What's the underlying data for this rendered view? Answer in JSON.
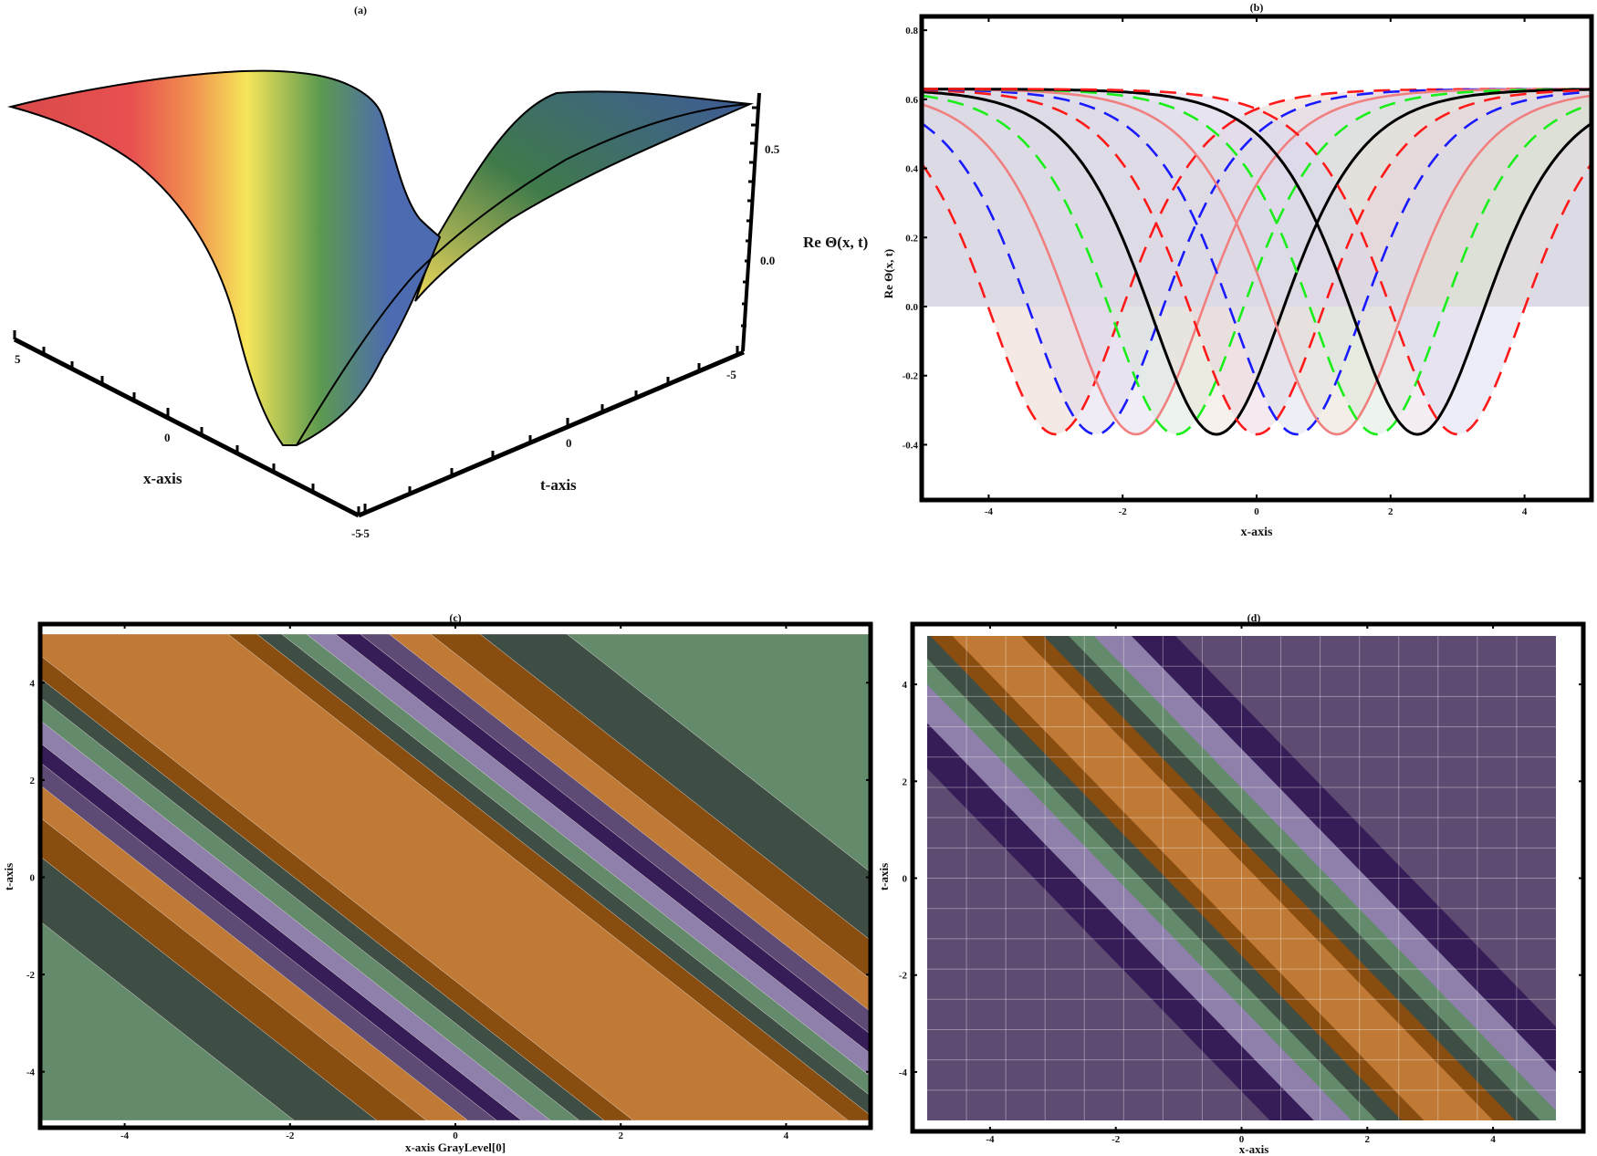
{
  "chart_data": [
    {
      "panel": "a",
      "type": "surface3d",
      "title": "(a)",
      "xlabel": "x-axis",
      "ylabel": "t-axis",
      "zlabel": "Re Θ(x, t)",
      "x_ticks": [
        "5",
        "0",
        "-5"
      ],
      "t_ticks": [
        "-5",
        "0",
        "-5"
      ],
      "z_ticks": [
        "0.5",
        "0.0"
      ],
      "xlim": [
        -5,
        5
      ],
      "tlim": [
        -5,
        5
      ],
      "zlim": [
        -0.37,
        0.63
      ],
      "colormap": [
        "#d94a4a",
        "#f0904f",
        "#f6e65a",
        "#5c9a4f",
        "#4d6bb0"
      ]
    },
    {
      "panel": "b",
      "type": "line",
      "title": "(b)",
      "xlabel": "x-axis",
      "ylabel": "Re Θ(x, t)",
      "xlim": [
        -5,
        5
      ],
      "ylim": [
        -0.56,
        0.84
      ],
      "x_ticks": [
        "-4",
        "-2",
        "0",
        "2",
        "4"
      ],
      "y_ticks": [
        "0.8",
        "0.6",
        "0.4",
        "0.2",
        "0.0",
        "-0.2",
        "-0.4"
      ],
      "fill_to_zero": true,
      "profile": {
        "max": 0.63,
        "min": -0.37,
        "note": "identical soliton profiles shifted in x"
      },
      "series": [
        {
          "name": "red-dashed-1",
          "color": "#ff1a1a",
          "style": "dashed",
          "min_x": -3.0
        },
        {
          "name": "blue-dashed-1",
          "color": "#1a1aff",
          "style": "dashed",
          "min_x": -2.4
        },
        {
          "name": "pink-solid-1",
          "color": "#f08080",
          "style": "solid",
          "min_x": -1.8
        },
        {
          "name": "green-dashed-1",
          "color": "#1aee1a",
          "style": "dashed",
          "min_x": -1.2
        },
        {
          "name": "black-solid-1",
          "color": "#000000",
          "style": "solid",
          "min_x": -0.6
        },
        {
          "name": "red-dashed-2",
          "color": "#ff1a1a",
          "style": "dashed",
          "min_x": 0.0
        },
        {
          "name": "blue-dashed-2",
          "color": "#1a1aff",
          "style": "dashed",
          "min_x": 0.6
        },
        {
          "name": "pink-solid-2",
          "color": "#f08080",
          "style": "solid",
          "min_x": 1.2
        },
        {
          "name": "green-dashed-2",
          "color": "#1aee1a",
          "style": "dashed",
          "min_x": 1.8
        },
        {
          "name": "black-solid-2",
          "color": "#000000",
          "style": "solid",
          "min_x": 2.4
        },
        {
          "name": "red-dashed-3",
          "color": "#ff1a1a",
          "style": "dashed",
          "min_x": 3.0
        }
      ]
    },
    {
      "panel": "c",
      "type": "contour",
      "title": "(c)",
      "xlabel": "x-axis GrayLevel[0]",
      "ylabel": "t-axis",
      "xlim": [
        -5,
        5
      ],
      "ylim": [
        -5,
        5
      ],
      "x_ticks": [
        "-4",
        "-2",
        "0",
        "2",
        "4"
      ],
      "y_ticks": [
        "4",
        "2",
        "0",
        "-2",
        "-4"
      ],
      "levels_colors": [
        "#648a6c",
        "#3f4e44",
        "#8a4d10",
        "#c07a35",
        "#5e4b75",
        "#361d57",
        "#8e80aa"
      ]
    },
    {
      "panel": "d",
      "type": "density",
      "title": "(d)",
      "xlabel": "x-axis",
      "ylabel": "t-axis",
      "xlim": [
        -5,
        5
      ],
      "ylim": [
        -5,
        5
      ],
      "x_ticks": [
        "-4",
        "-2",
        "0",
        "2",
        "4"
      ],
      "y_ticks": [
        "4",
        "2",
        "0",
        "-2",
        "-4"
      ],
      "grid": true,
      "colors": [
        "#5e4b72",
        "#361d57",
        "#8e80aa",
        "#648a6c",
        "#3f4e44",
        "#8a4d10",
        "#c07a35"
      ]
    }
  ]
}
